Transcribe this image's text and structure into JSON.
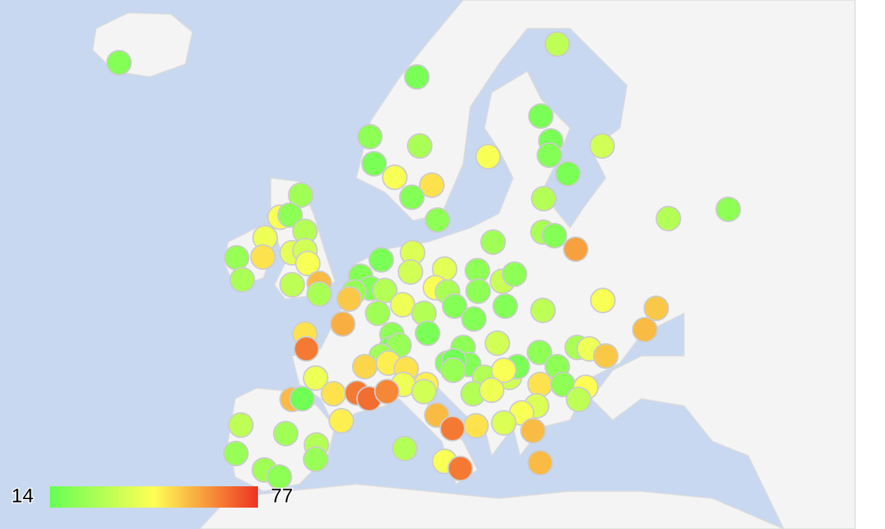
{
  "chart_data": {
    "type": "geo-bubble",
    "colorlim": [
      14,
      77
    ],
    "colors": [
      "#66ff55",
      "#ffff55",
      "#ee3322"
    ],
    "values": [
      20,
      18,
      32,
      18,
      18,
      20,
      36,
      18,
      22,
      28,
      18,
      44,
      50,
      20,
      44,
      30,
      22,
      30,
      22,
      28,
      20,
      60,
      26,
      44,
      22,
      42,
      30,
      24,
      50,
      28,
      40,
      36,
      44,
      56,
      32,
      28,
      18,
      38,
      36,
      20,
      20,
      24,
      30,
      54,
      58,
      42,
      26,
      30,
      18,
      40,
      44,
      28,
      22,
      22,
      26,
      34,
      22,
      20,
      20,
      20,
      32,
      44,
      54,
      56,
      50,
      66,
      22,
      18,
      24,
      26,
      52,
      48,
      50,
      48,
      42,
      42,
      50,
      66,
      68,
      64,
      36,
      56,
      16,
      48,
      22,
      36,
      20,
      20,
      16,
      24,
      30,
      36,
      18,
      44,
      30,
      42,
      22,
      50,
      22,
      22,
      28,
      42,
      54,
      46,
      32,
      38,
      44,
      56,
      38,
      50,
      56,
      66,
      30,
      44,
      66,
      56,
      32,
      26,
      24,
      30,
      24,
      26,
      22
    ]
  }
}
